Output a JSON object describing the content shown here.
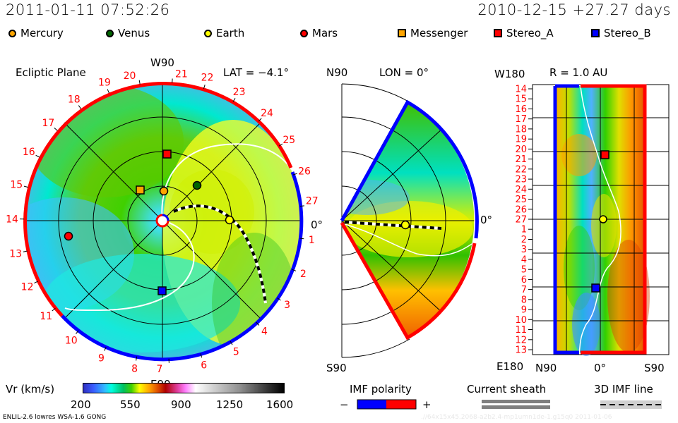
{
  "header": {
    "timestamp": "2011-01-11 07:52:26",
    "run_info": "2010-12-15 +27.27 days"
  },
  "legend": {
    "bodies": [
      {
        "name": "Mercury",
        "shape": "circle",
        "color": "#ffa500"
      },
      {
        "name": "Venus",
        "shape": "circle",
        "color": "#006400"
      },
      {
        "name": "Earth",
        "shape": "circle",
        "color": "#ffff00"
      },
      {
        "name": "Mars",
        "shape": "circle",
        "color": "#ff0000"
      },
      {
        "name": "Messenger",
        "shape": "square",
        "color": "#ffa500"
      },
      {
        "name": "Stereo_A",
        "shape": "square",
        "color": "#ff0000"
      },
      {
        "name": "Stereo_B",
        "shape": "square",
        "color": "#0000ff"
      }
    ]
  },
  "ecliptic_panel": {
    "title": "Ecliptic Plane",
    "top_label": "W90",
    "bottom_label": "E90",
    "right_label": "0°",
    "lat_label": "LAT = −4.1°",
    "carrington_days": [
      "27",
      "1",
      "2",
      "3",
      "4",
      "5",
      "6",
      "7",
      "8",
      "9",
      "10",
      "11",
      "12",
      "13",
      "14",
      "15",
      "16",
      "17",
      "18",
      "19",
      "20",
      "21",
      "22",
      "23",
      "24",
      "25",
      "26"
    ]
  },
  "meridional_panel": {
    "top_label": "N90",
    "lon_label": "LON = 0°",
    "bottom_label": "S90",
    "right_label": "0°"
  },
  "radial_panel": {
    "r_label": "R = 1.0 AU",
    "top_label": "W180",
    "bottom_label": "E180",
    "x_labels": [
      "N90",
      "0°",
      "S90"
    ],
    "day_labels": [
      "14",
      "15",
      "16",
      "17",
      "18",
      "19",
      "20",
      "21",
      "22",
      "23",
      "24",
      "25",
      "26",
      "27",
      "1",
      "2",
      "3",
      "4",
      "5",
      "6",
      "7",
      "8",
      "9",
      "10",
      "11",
      "12",
      "13"
    ]
  },
  "colorbar": {
    "label": "Vr (km/s)",
    "ticks": [
      "200",
      "550",
      "900",
      "1250",
      "1600"
    ]
  },
  "imf_legend": {
    "title": "IMF polarity",
    "minus": "−",
    "plus": "+",
    "neg_color": "#0000ff",
    "pos_color": "#ff0000"
  },
  "sheath_legend": {
    "title": "Current sheath"
  },
  "imf_line_legend": {
    "title": "3D IMF line"
  },
  "footer": {
    "model": "ENLIL-2.6 lowres WSA-1.6 GONG",
    "run_id": ".//64x15x45.2068-a2b2.4-mp1umn1de-1.g15q0   2011-01-06"
  }
}
